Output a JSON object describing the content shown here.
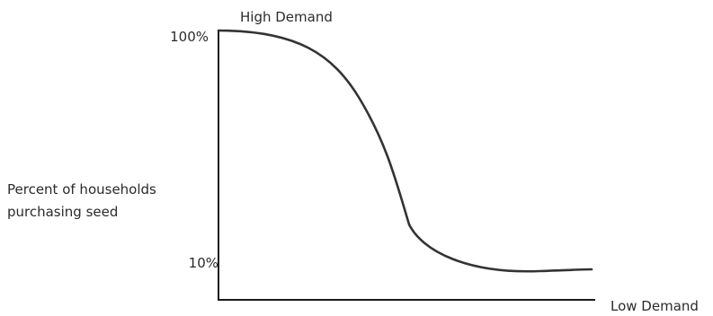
{
  "chart_data": {
    "type": "line",
    "title": "",
    "xlabel": "",
    "ylabel_lines": [
      "Percent of households",
      "purchasing seed"
    ],
    "y_tick_labels": [
      "100%",
      "10%"
    ],
    "annotations": {
      "high_demand": "High Demand",
      "low_demand": "Low Demand"
    },
    "grid": false,
    "legend": "none",
    "line_color": "#333333",
    "axis_color": "#1a1a1a"
  }
}
